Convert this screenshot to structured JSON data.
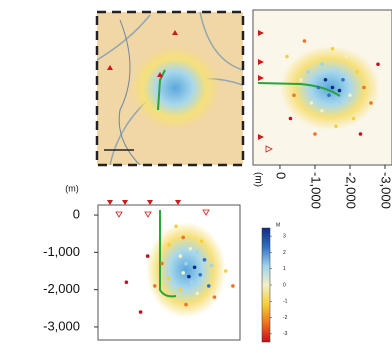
{
  "chart_data": [
    {
      "type": "scatter",
      "y_unit": "(m)",
      "xlim": [
        0,
        1
      ],
      "ylim": [
        -3350,
        270
      ],
      "yticks": [
        0,
        {
          "value": -1000,
          "label": "-1,000"
        },
        {
          "value": -2000,
          "label": "-2,000"
        },
        {
          "value": -3000,
          "label": "-3,000"
        }
      ],
      "x": [
        0.55,
        0.6,
        0.5,
        0.65,
        0.7,
        0.58,
        0.75,
        0.62,
        0.68,
        0.8,
        0.72,
        0.6,
        0.85,
        0.66,
        0.78,
        0.5,
        0.9,
        0.45,
        0.7,
        0.58,
        0.82,
        0.35,
        0.4,
        0.95,
        0.62,
        0.3,
        0.2,
        0.73,
        0.52,
        0.64
      ],
      "y": [
        -300,
        -600,
        -800,
        -900,
        -1000,
        -1100,
        -1200,
        -1300,
        -1400,
        -1350,
        -1600,
        -1550,
        -1700,
        -1800,
        -1900,
        -1700,
        -1500,
        -1300,
        -2100,
        -2000,
        -2200,
        -1100,
        -1900,
        -1900,
        -2400,
        -2600,
        -1800,
        -700,
        -1450,
        -1650
      ],
      "magnitude": [
        -1,
        -2,
        -1,
        0,
        1,
        0,
        2,
        1,
        3,
        1,
        2,
        0,
        0,
        1,
        2,
        -1,
        -1,
        -2,
        0,
        -1,
        -2,
        -3,
        -2,
        -2,
        -2,
        -3,
        -3,
        -1,
        1,
        3
      ]
    },
    {
      "type": "scatter",
      "x_unit": "(m)",
      "xlim": [
        770,
        -3200
      ],
      "ylim": [
        0,
        1
      ],
      "xticks": [
        0,
        {
          "value": -1000,
          "label": "-1,000"
        },
        {
          "value": -2000,
          "label": "-2,000"
        },
        {
          "value": -3000,
          "label": "-3,000"
        }
      ],
      "x": [
        -200,
        -400,
        -600,
        -800,
        -900,
        -1100,
        -1200,
        -1300,
        -1400,
        -1500,
        -1600,
        -1700,
        -1800,
        -1900,
        -2000,
        -2100,
        -2200,
        -2400,
        -2600,
        -2800,
        -1000,
        -700,
        -1500,
        -1600,
        -300,
        -2300,
        -1200,
        -1700
      ],
      "y": [
        0.3,
        0.55,
        0.45,
        0.4,
        0.6,
        0.5,
        0.35,
        0.45,
        0.55,
        0.5,
        0.4,
        0.6,
        0.45,
        0.3,
        0.55,
        0.7,
        0.4,
        0.5,
        0.6,
        0.35,
        0.8,
        0.2,
        0.25,
        0.75,
        0.7,
        0.8,
        0.65,
        0.52
      ],
      "magnitude": [
        -1,
        -2,
        0,
        1,
        0,
        2,
        1,
        3,
        2,
        3,
        1,
        1,
        2,
        0,
        0,
        -1,
        -1,
        -2,
        -2,
        -3,
        -2,
        -2,
        -1,
        -1,
        -3,
        -3,
        0,
        3
      ]
    },
    {
      "type": "colorbar",
      "title": "M",
      "lim": [
        -3.5,
        3.5
      ],
      "ticks": [
        3,
        2,
        1,
        0,
        -1,
        -2,
        -3
      ],
      "colors": [
        "#102a88",
        "#2f6fc4",
        "#9fd3ee",
        "#f2f0c4",
        "#f7cf3c",
        "#ee7322",
        "#c3101a"
      ]
    }
  ]
}
